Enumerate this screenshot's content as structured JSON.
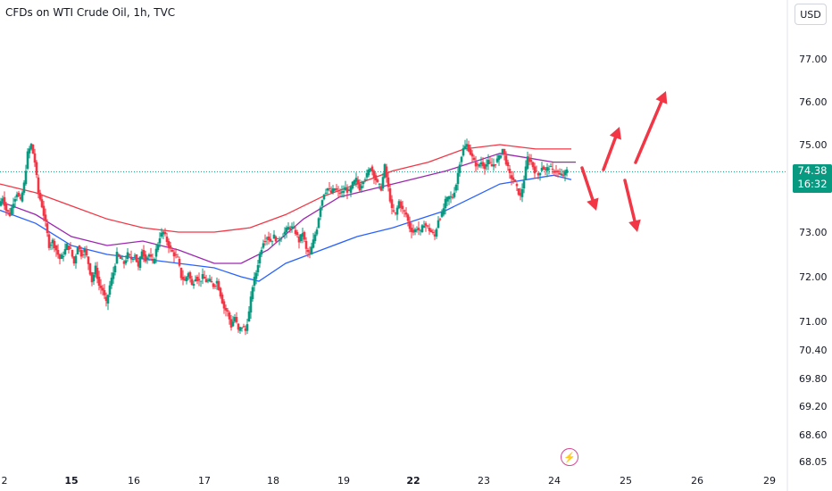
{
  "header": {
    "title": "CFDs on WTI Crude Oil, 1h, TVC",
    "currency": "USD"
  },
  "price_tag": {
    "price": "74.38",
    "countdown": "16:32"
  },
  "colors": {
    "up": "#089981",
    "down": "#f23645",
    "ma_blue": "#2962ff",
    "ma_purple": "#9c27b0",
    "ma_red": "#f23645",
    "arrow": "#f23645"
  },
  "icons": {
    "flash": "lightning-bolt-icon"
  },
  "chart_data": {
    "type": "candlestick",
    "y_ticks": [
      "77.00",
      "76.00",
      "75.00",
      "73.00",
      "72.00",
      "71.00",
      "70.40",
      "69.80",
      "69.20",
      "68.60",
      "68.05"
    ],
    "x_ticks": [
      {
        "label": "2",
        "bold": false
      },
      {
        "label": "15",
        "bold": true
      },
      {
        "label": "16",
        "bold": false
      },
      {
        "label": "17",
        "bold": false
      },
      {
        "label": "18",
        "bold": false
      },
      {
        "label": "19",
        "bold": false
      },
      {
        "label": "22",
        "bold": true
      },
      {
        "label": "23",
        "bold": false
      },
      {
        "label": "24",
        "bold": false
      },
      {
        "label": "25",
        "bold": false
      },
      {
        "label": "26",
        "bold": false
      },
      {
        "label": "29",
        "bold": false
      }
    ],
    "last_price": 74.38,
    "close_path": [
      [
        0,
        73.6
      ],
      [
        4,
        73.8
      ],
      [
        8,
        73.5
      ],
      [
        12,
        73.4
      ],
      [
        16,
        73.7
      ],
      [
        20,
        73.9
      ],
      [
        24,
        73.7
      ],
      [
        28,
        74.1
      ],
      [
        32,
        74.8
      ],
      [
        36,
        75.0
      ],
      [
        40,
        74.6
      ],
      [
        44,
        73.9
      ],
      [
        48,
        73.6
      ],
      [
        52,
        73.2
      ],
      [
        56,
        72.7
      ],
      [
        60,
        72.8
      ],
      [
        64,
        72.6
      ],
      [
        68,
        72.4
      ],
      [
        72,
        72.5
      ],
      [
        76,
        72.7
      ],
      [
        80,
        72.6
      ],
      [
        84,
        72.3
      ],
      [
        88,
        72.7
      ],
      [
        92,
        72.5
      ],
      [
        96,
        72.6
      ],
      [
        100,
        72.3
      ],
      [
        104,
        71.9
      ],
      [
        108,
        72.2
      ],
      [
        112,
        71.8
      ],
      [
        116,
        71.7
      ],
      [
        120,
        71.4
      ],
      [
        124,
        71.8
      ],
      [
        128,
        72.1
      ],
      [
        132,
        72.5
      ],
      [
        136,
        72.4
      ],
      [
        140,
        72.3
      ],
      [
        144,
        72.5
      ],
      [
        148,
        72.4
      ],
      [
        152,
        72.5
      ],
      [
        156,
        72.2
      ],
      [
        160,
        72.6
      ],
      [
        164,
        72.4
      ],
      [
        168,
        72.5
      ],
      [
        172,
        72.3
      ],
      [
        176,
        72.6
      ],
      [
        180,
        72.9
      ],
      [
        184,
        73.0
      ],
      [
        188,
        72.8
      ],
      [
        192,
        72.6
      ],
      [
        196,
        72.5
      ],
      [
        200,
        72.4
      ],
      [
        204,
        72.0
      ],
      [
        208,
        71.9
      ],
      [
        212,
        72.1
      ],
      [
        216,
        71.8
      ],
      [
        220,
        72.0
      ],
      [
        224,
        71.9
      ],
      [
        228,
        72.0
      ],
      [
        232,
        71.9
      ],
      [
        236,
        71.9
      ],
      [
        240,
        71.8
      ],
      [
        244,
        71.9
      ],
      [
        248,
        71.6
      ],
      [
        252,
        71.3
      ],
      [
        256,
        71.2
      ],
      [
        260,
        70.9
      ],
      [
        264,
        71.1
      ],
      [
        268,
        70.8
      ],
      [
        272,
        70.9
      ],
      [
        276,
        70.8
      ],
      [
        280,
        71.2
      ],
      [
        284,
        71.8
      ],
      [
        288,
        72.1
      ],
      [
        292,
        72.5
      ],
      [
        296,
        72.8
      ],
      [
        300,
        72.9
      ],
      [
        304,
        72.8
      ],
      [
        308,
        72.9
      ],
      [
        312,
        72.8
      ],
      [
        316,
        72.9
      ],
      [
        320,
        73.0
      ],
      [
        324,
        73.1
      ],
      [
        328,
        73.1
      ],
      [
        332,
        73.0
      ],
      [
        336,
        72.8
      ],
      [
        340,
        73.0
      ],
      [
        344,
        72.6
      ],
      [
        348,
        72.5
      ],
      [
        352,
        72.8
      ],
      [
        356,
        73.1
      ],
      [
        360,
        73.6
      ],
      [
        364,
        73.9
      ],
      [
        368,
        74.0
      ],
      [
        372,
        73.9
      ],
      [
        376,
        74.0
      ],
      [
        380,
        73.9
      ],
      [
        384,
        73.9
      ],
      [
        388,
        74.0
      ],
      [
        392,
        73.9
      ],
      [
        396,
        74.1
      ],
      [
        400,
        74.2
      ],
      [
        404,
        74.0
      ],
      [
        408,
        74.2
      ],
      [
        412,
        74.3
      ],
      [
        416,
        74.5
      ],
      [
        420,
        74.3
      ],
      [
        424,
        74.1
      ],
      [
        428,
        74.0
      ],
      [
        432,
        74.5
      ],
      [
        436,
        74.0
      ],
      [
        440,
        73.5
      ],
      [
        444,
        73.4
      ],
      [
        448,
        73.7
      ],
      [
        452,
        73.5
      ],
      [
        456,
        73.4
      ],
      [
        460,
        73.1
      ],
      [
        464,
        73.0
      ],
      [
        468,
        73.1
      ],
      [
        472,
        73.0
      ],
      [
        476,
        73.2
      ],
      [
        480,
        73.1
      ],
      [
        484,
        73.0
      ],
      [
        488,
        72.9
      ],
      [
        492,
        73.3
      ],
      [
        496,
        73.4
      ],
      [
        500,
        73.7
      ],
      [
        504,
        73.8
      ],
      [
        508,
        73.8
      ],
      [
        512,
        74.1
      ],
      [
        516,
        74.6
      ],
      [
        520,
        74.9
      ],
      [
        524,
        75.0
      ],
      [
        528,
        74.8
      ],
      [
        532,
        74.6
      ],
      [
        536,
        74.5
      ],
      [
        540,
        74.6
      ],
      [
        544,
        74.5
      ],
      [
        548,
        74.6
      ],
      [
        552,
        74.5
      ],
      [
        556,
        74.6
      ],
      [
        560,
        74.7
      ],
      [
        564,
        74.9
      ],
      [
        568,
        74.6
      ],
      [
        572,
        74.3
      ],
      [
        576,
        74.2
      ],
      [
        580,
        74.0
      ],
      [
        584,
        73.8
      ],
      [
        588,
        74.2
      ],
      [
        592,
        74.7
      ],
      [
        596,
        74.6
      ],
      [
        600,
        74.4
      ],
      [
        604,
        74.3
      ],
      [
        608,
        74.5
      ],
      [
        612,
        74.4
      ],
      [
        616,
        74.5
      ],
      [
        620,
        74.4
      ],
      [
        624,
        74.4
      ],
      [
        628,
        74.3
      ],
      [
        632,
        74.3
      ],
      [
        636,
        74.4
      ]
    ],
    "ma_blue": [
      [
        0,
        73.5
      ],
      [
        40,
        73.2
      ],
      [
        80,
        72.7
      ],
      [
        120,
        72.5
      ],
      [
        160,
        72.4
      ],
      [
        200,
        72.3
      ],
      [
        240,
        72.2
      ],
      [
        270,
        72.0
      ],
      [
        290,
        71.9
      ],
      [
        320,
        72.3
      ],
      [
        360,
        72.6
      ],
      [
        400,
        72.9
      ],
      [
        440,
        73.1
      ],
      [
        470,
        73.3
      ],
      [
        500,
        73.5
      ],
      [
        530,
        73.8
      ],
      [
        560,
        74.1
      ],
      [
        590,
        74.2
      ],
      [
        620,
        74.3
      ],
      [
        640,
        74.2
      ]
    ],
    "ma_purple": [
      [
        0,
        73.7
      ],
      [
        40,
        73.4
      ],
      [
        80,
        72.9
      ],
      [
        120,
        72.7
      ],
      [
        160,
        72.8
      ],
      [
        200,
        72.6
      ],
      [
        240,
        72.3
      ],
      [
        270,
        72.3
      ],
      [
        300,
        72.6
      ],
      [
        340,
        73.3
      ],
      [
        380,
        73.8
      ],
      [
        420,
        74.0
      ],
      [
        460,
        74.2
      ],
      [
        500,
        74.4
      ],
      [
        530,
        74.6
      ],
      [
        560,
        74.8
      ],
      [
        590,
        74.7
      ],
      [
        620,
        74.6
      ],
      [
        645,
        74.6
      ]
    ],
    "ma_red": [
      [
        0,
        74.1
      ],
      [
        40,
        73.9
      ],
      [
        80,
        73.6
      ],
      [
        120,
        73.3
      ],
      [
        160,
        73.1
      ],
      [
        200,
        73.0
      ],
      [
        240,
        73.0
      ],
      [
        280,
        73.1
      ],
      [
        320,
        73.4
      ],
      [
        360,
        73.8
      ],
      [
        400,
        74.1
      ],
      [
        440,
        74.4
      ],
      [
        480,
        74.6
      ],
      [
        520,
        74.9
      ],
      [
        560,
        75.0
      ],
      [
        600,
        74.9
      ],
      [
        640,
        74.9
      ]
    ],
    "annotations": [
      {
        "kind": "arrow",
        "from": [
          652,
          188
        ],
        "to": [
          668,
          236
        ]
      },
      {
        "kind": "arrow",
        "from": [
          676,
          190
        ],
        "to": [
          694,
          142
        ]
      },
      {
        "kind": "arrow",
        "from": [
          700,
          202
        ],
        "to": [
          714,
          260
        ]
      },
      {
        "kind": "arrow",
        "from": [
          712,
          182
        ],
        "to": [
          746,
          102
        ]
      }
    ]
  }
}
